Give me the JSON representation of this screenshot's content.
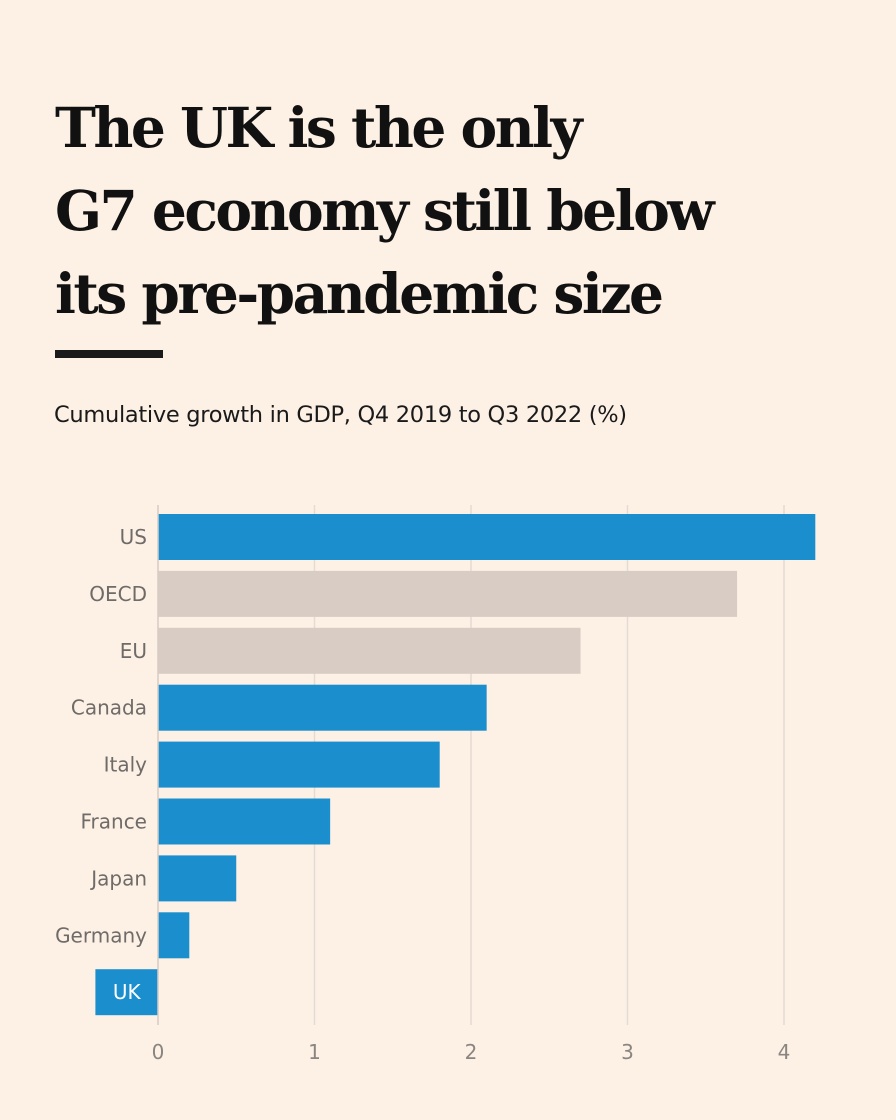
{
  "headline": {
    "line1": "The UK is the only",
    "line2": "G7 economy still below",
    "line3": "its pre-pandemic size"
  },
  "colors": {
    "background": "#fdf1e6",
    "g7_bar": "#1b8ece",
    "aggregate_bar": "#d8ccc4",
    "gridline": "#e5dbd2",
    "highlight_label_bg": "#1b8ece"
  },
  "chart_data": {
    "type": "bar",
    "orientation": "horizontal",
    "title": "Cumulative growth in GDP, Q4 2019 to Q3 2022 (%)",
    "xlabel": "",
    "ylabel": "",
    "xlim": [
      0,
      4.3
    ],
    "xticks": [
      0,
      1,
      2,
      3,
      4
    ],
    "categories": [
      "US",
      "OECD",
      "EU",
      "Canada",
      "Italy",
      "France",
      "Japan",
      "Germany",
      "UK"
    ],
    "values": [
      4.2,
      3.7,
      2.7,
      2.1,
      1.8,
      1.1,
      0.5,
      0.2,
      -0.4
    ],
    "groups": [
      "g7",
      "aggregate",
      "aggregate",
      "g7",
      "g7",
      "g7",
      "g7",
      "g7",
      "g7"
    ],
    "highlighted_category": "UK",
    "grid": true
  }
}
